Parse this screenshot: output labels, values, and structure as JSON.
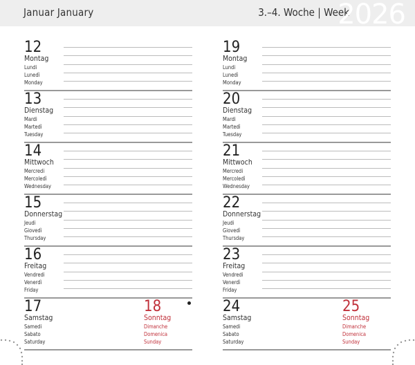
{
  "header": {
    "month": "Januar  January",
    "week": "3.–4. Woche | Week",
    "year": "2026"
  },
  "colors": {
    "accent": "#c0303a",
    "header_bg": "#eeeeee"
  },
  "left": {
    "days": [
      {
        "num": "12",
        "name": "Montag",
        "fr": "Lundi",
        "it": "Lunedì",
        "en": "Monday"
      },
      {
        "num": "13",
        "name": "Dienstag",
        "fr": "Mardi",
        "it": "Martedì",
        "en": "Tuesday"
      },
      {
        "num": "14",
        "name": "Mittwoch",
        "fr": "Mercredi",
        "it": "Mercoledì",
        "en": "Wednesday"
      },
      {
        "num": "15",
        "name": "Donnerstag",
        "fr": "Jeudi",
        "it": "Giovedì",
        "en": "Thursday"
      },
      {
        "num": "16",
        "name": "Freitag",
        "fr": "Vendredi",
        "it": "Venerdì",
        "en": "Friday"
      }
    ],
    "sat": {
      "num": "17",
      "name": "Samstag",
      "fr": "Samedi",
      "it": "Sabato",
      "en": "Saturday"
    },
    "sun": {
      "num": "18",
      "name": "Sonntag",
      "fr": "Dimanche",
      "it": "Domenica",
      "en": "Sunday",
      "marker": "new-moon-icon"
    }
  },
  "right": {
    "days": [
      {
        "num": "19",
        "name": "Montag",
        "fr": "Lundi",
        "it": "Lunedì",
        "en": "Monday"
      },
      {
        "num": "20",
        "name": "Dienstag",
        "fr": "Mardi",
        "it": "Martedì",
        "en": "Tuesday"
      },
      {
        "num": "21",
        "name": "Mittwoch",
        "fr": "Mercredi",
        "it": "Mercoledì",
        "en": "Wednesday"
      },
      {
        "num": "22",
        "name": "Donnerstag",
        "fr": "Jeudi",
        "it": "Giovedì",
        "en": "Thursday"
      },
      {
        "num": "23",
        "name": "Freitag",
        "fr": "Vendredi",
        "it": "Venerdì",
        "en": "Friday"
      }
    ],
    "sat": {
      "num": "24",
      "name": "Samstag",
      "fr": "Samedi",
      "it": "Sabato",
      "en": "Saturday"
    },
    "sun": {
      "num": "25",
      "name": "Sonntag",
      "fr": "Dimanche",
      "it": "Domenica",
      "en": "Sunday"
    }
  }
}
